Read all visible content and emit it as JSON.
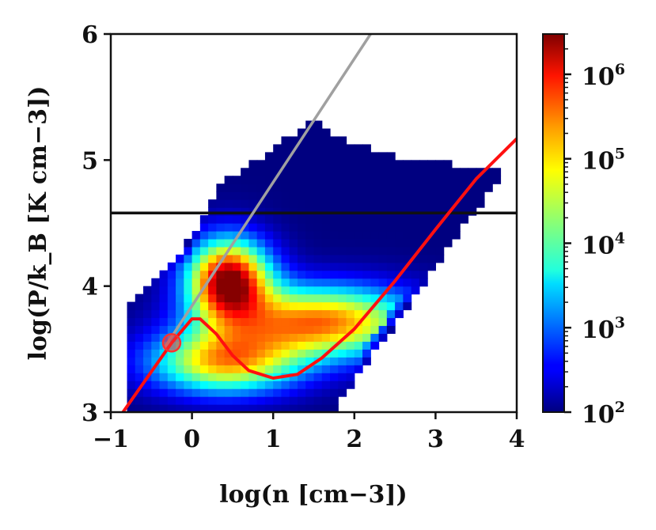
{
  "chart_data": {
    "type": "heatmap",
    "xlabel": "log(n [cm−3])",
    "ylabel": "log(P/k_B [K cm−3])",
    "xlim": [
      -1,
      4
    ],
    "ylim": [
      3,
      6
    ],
    "x_ticks": [
      "−1",
      "0",
      "1",
      "2",
      "3",
      "4"
    ],
    "y_ticks": [
      "3",
      "4",
      "5",
      "6"
    ],
    "colorbar": {
      "scale": "log",
      "range": [
        100,
        3000000
      ],
      "colormap": "jet",
      "ticks": [
        {
          "base": "10",
          "exp": "2",
          "value": 100
        },
        {
          "base": "10",
          "exp": "3",
          "value": 1000
        },
        {
          "base": "10",
          "exp": "4",
          "value": 10000
        },
        {
          "base": "10",
          "exp": "5",
          "value": 100000
        },
        {
          "base": "10",
          "exp": "6",
          "value": 1000000
        }
      ]
    },
    "peak": {
      "x": 0.45,
      "y": 4.05,
      "value": 3000000
    },
    "lines": [
      {
        "kind": "horizontal",
        "color": "#111111",
        "y": 4.58
      },
      {
        "kind": "line",
        "color": "#a0a0a0",
        "points": [
          [
            -0.35,
            3.5
          ],
          [
            2.2,
            6.0
          ]
        ]
      },
      {
        "kind": "equilibrium_curve",
        "color": "#ff1010",
        "points": [
          [
            -0.85,
            3.0
          ],
          [
            -0.25,
            3.55
          ],
          [
            0.0,
            3.74
          ],
          [
            0.1,
            3.74
          ],
          [
            0.3,
            3.62
          ],
          [
            0.5,
            3.45
          ],
          [
            0.7,
            3.33
          ],
          [
            1.0,
            3.27
          ],
          [
            1.3,
            3.3
          ],
          [
            1.6,
            3.43
          ],
          [
            2.0,
            3.66
          ],
          [
            2.5,
            4.04
          ],
          [
            3.0,
            4.45
          ],
          [
            3.5,
            4.85
          ],
          [
            4.0,
            5.17
          ]
        ]
      }
    ],
    "marker": {
      "x": -0.25,
      "y": 3.55,
      "color": "#ff3030"
    }
  }
}
